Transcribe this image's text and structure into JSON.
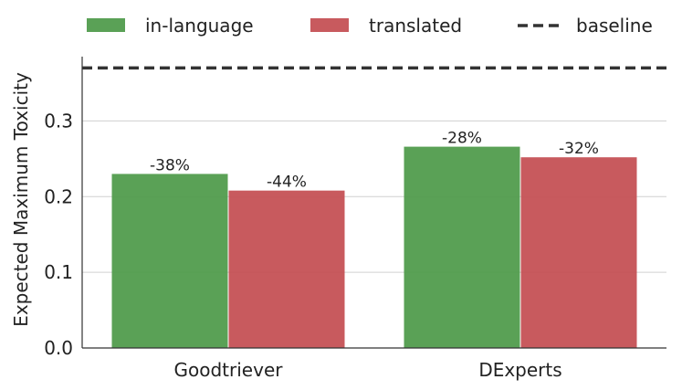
{
  "chart_data": {
    "type": "bar",
    "title": "",
    "xlabel": "",
    "ylabel": "Expected Maximum Toxicity",
    "ylim": [
      0,
      0.385
    ],
    "yticks": [
      "0.0",
      "0.1",
      "0.2",
      "0.3"
    ],
    "grid": "horizontal",
    "legend_position": "top",
    "categories": [
      "Goodtriever",
      "DExperts"
    ],
    "series": [
      {
        "name": "in-language",
        "color": "#4e9a49",
        "values": [
          0.23,
          0.266
        ],
        "labels": [
          "-38%",
          "-28%"
        ]
      },
      {
        "name": "translated",
        "color": "#c44e52",
        "values": [
          0.208,
          0.252
        ],
        "labels": [
          "-44%",
          "-32%"
        ]
      }
    ],
    "baseline": {
      "name": "baseline",
      "value": 0.37,
      "color": "#333333"
    }
  }
}
